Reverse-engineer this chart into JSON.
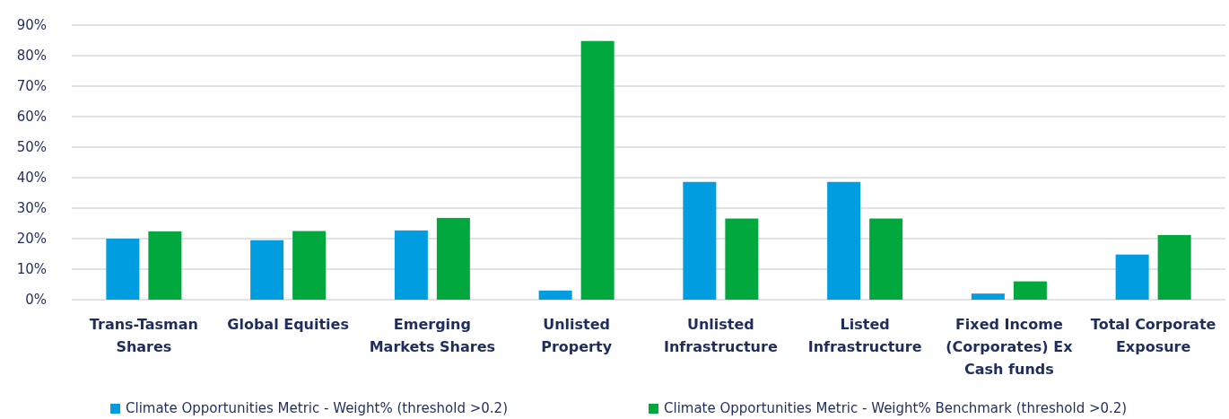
{
  "chart_data": {
    "type": "bar",
    "categories": [
      "Trans-Tasman Shares",
      "Global Equities",
      "Emerging Markets Shares",
      "Unlisted Property",
      "Unlisted Infrastructure",
      "Listed Infrastructure",
      "Fixed Income (Corporates) Ex Cash funds",
      "Total Corporate Exposure"
    ],
    "series": [
      {
        "name": "Climate Opportunities Metric - Weight% (threshold >0.2)",
        "color": "#009de0",
        "values": [
          20,
          19.5,
          22.7,
          3,
          38.6,
          38.6,
          2,
          14.8
        ]
      },
      {
        "name": "Climate Opportunities Metric - Weight% Benchmark (threshold >0.2)",
        "color": "#00a83e",
        "values": [
          22.4,
          22.5,
          26.8,
          84.8,
          26.6,
          26.6,
          6,
          21.2
        ]
      }
    ],
    "ylim": [
      0,
      90
    ],
    "yticks": [
      {
        "value": 0,
        "label": "0%"
      },
      {
        "value": 10,
        "label": "10%"
      },
      {
        "value": 20,
        "label": "20%"
      },
      {
        "value": 30,
        "label": "30%"
      },
      {
        "value": 40,
        "label": "40%"
      },
      {
        "value": 50,
        "label": "50%"
      },
      {
        "value": 60,
        "label": "60%"
      },
      {
        "value": 70,
        "label": "70%"
      },
      {
        "value": 80,
        "label": "80%"
      },
      {
        "value": 90,
        "label": "90%"
      }
    ],
    "grid": "y",
    "legend": "bottom"
  }
}
